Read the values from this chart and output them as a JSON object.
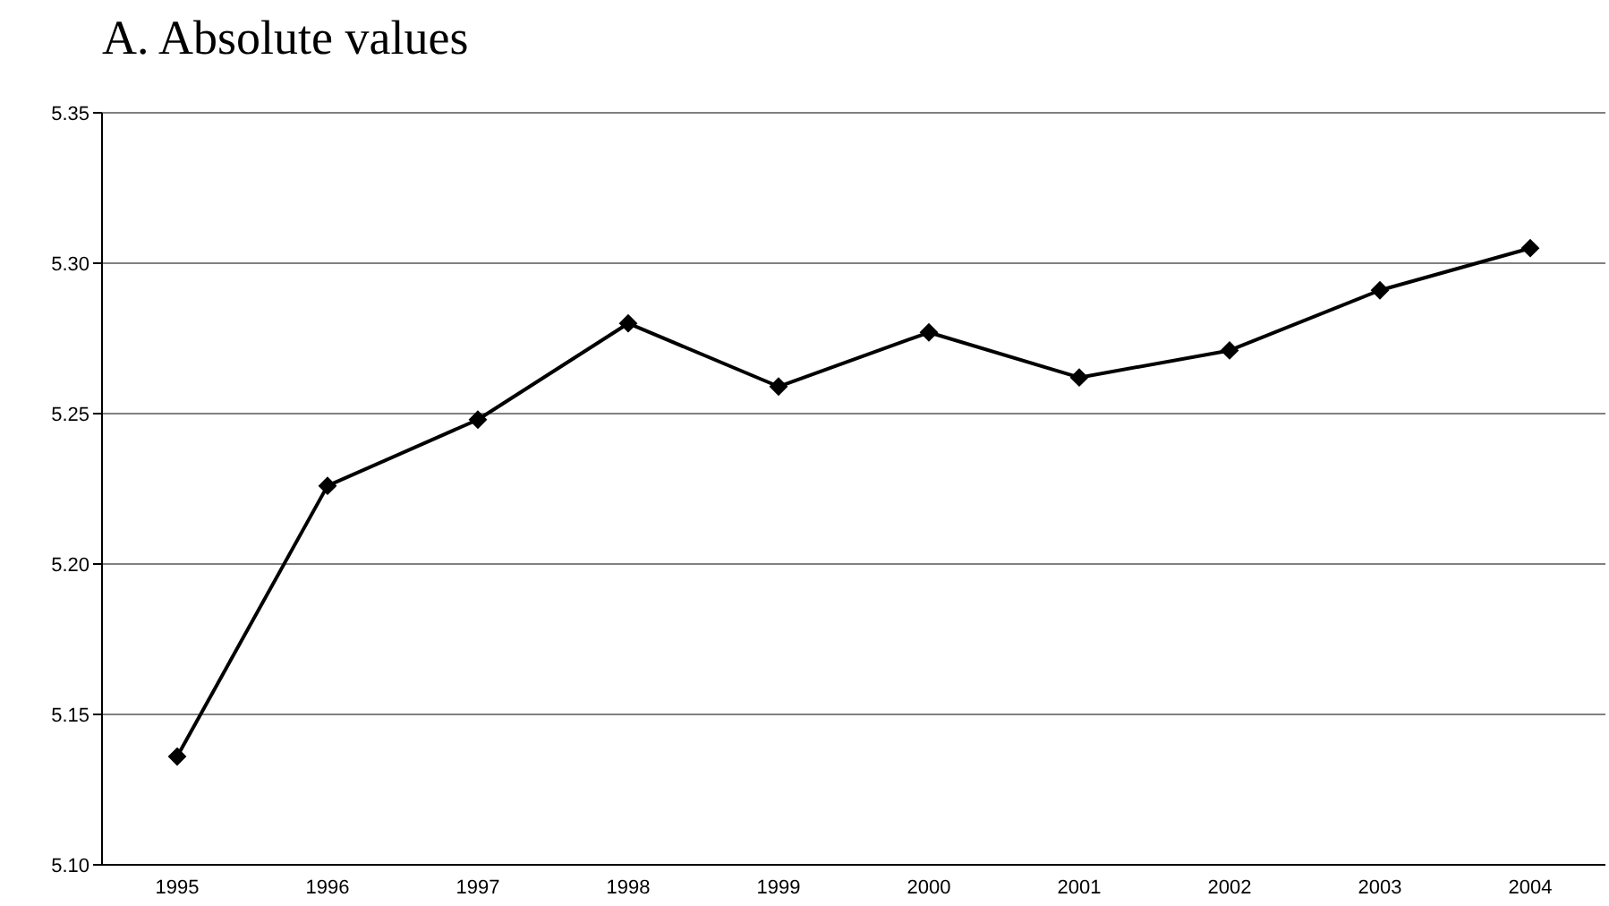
{
  "chart_data": {
    "type": "line",
    "title": "A. Absolute values",
    "categories": [
      "1995",
      "1996",
      "1997",
      "1998",
      "1999",
      "2000",
      "2001",
      "2002",
      "2003",
      "2004"
    ],
    "series": [
      {
        "color": "#000000",
        "values": [
          5.136,
          5.226,
          5.248,
          5.28,
          5.259,
          5.277,
          5.262,
          5.271,
          5.291,
          5.305
        ]
      }
    ],
    "ylim": [
      5.1,
      5.35
    ],
    "yticks": [
      {
        "value": 5.1,
        "label": "5.10"
      },
      {
        "value": 5.15,
        "label": "5.15"
      },
      {
        "value": 5.2,
        "label": "5.20"
      },
      {
        "value": 5.25,
        "label": "5.25"
      },
      {
        "value": 5.3,
        "label": "5.30"
      },
      {
        "value": 5.35,
        "label": "5.35"
      }
    ],
    "grid": "y",
    "marker": "diamond",
    "line_style": "solid"
  }
}
